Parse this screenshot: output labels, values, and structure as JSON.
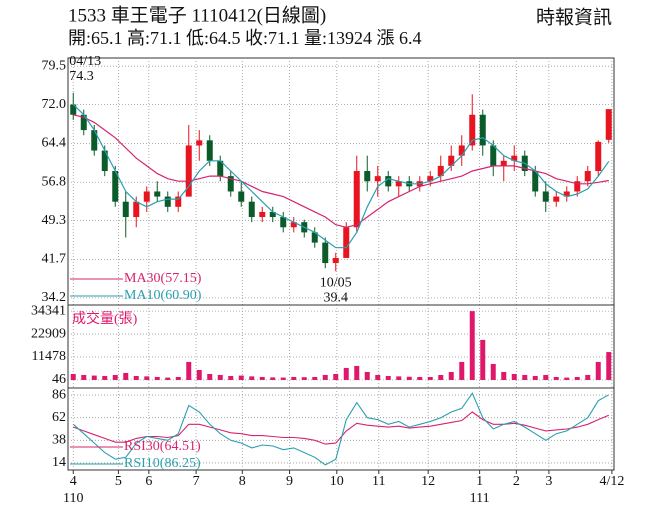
{
  "header": {
    "title": "1533  車王電子 1110412(日線圖)",
    "subtitle": "開:65.1 高:71.1 低:64.5 收:71.1 量:13924 漲 6.4",
    "source": "時報資訊"
  },
  "chart_data": [
    {
      "type": "candlestick",
      "open": [
        72,
        70,
        67,
        63,
        59,
        53,
        50,
        53,
        55,
        54,
        52,
        54,
        64,
        65,
        61,
        58,
        55,
        53,
        50,
        51,
        50,
        48,
        49,
        47,
        45,
        41,
        42,
        48,
        59,
        57,
        58,
        56,
        57,
        56,
        57,
        58,
        60,
        62,
        64,
        70,
        64,
        60,
        61,
        62,
        59,
        55,
        53,
        54,
        55,
        57,
        59,
        65.1
      ],
      "high": [
        74.3,
        71,
        68,
        64,
        60,
        55,
        54,
        56,
        57,
        55,
        55,
        68,
        67,
        66,
        62,
        59,
        57,
        54,
        52,
        52,
        51,
        50,
        49.5,
        48,
        46,
        43,
        49,
        62,
        62,
        60,
        59,
        58,
        58,
        58,
        59,
        62,
        64,
        66,
        74,
        71,
        65,
        62,
        64,
        63,
        60,
        57,
        55,
        56,
        58,
        60,
        65,
        71.1
      ],
      "low": [
        69,
        66,
        62,
        58,
        52,
        46,
        48,
        51,
        53,
        51,
        51,
        54,
        61,
        60,
        57,
        54,
        52,
        49,
        49,
        49,
        47,
        47,
        46,
        44,
        40,
        39.4,
        42,
        47,
        55,
        54,
        55,
        54,
        55,
        55,
        56,
        57,
        59,
        60,
        63,
        62,
        58,
        57,
        59,
        58,
        54,
        51,
        52,
        53,
        54,
        56,
        58,
        64.5
      ],
      "close": [
        70,
        67,
        63,
        59,
        53,
        50,
        53,
        55,
        54,
        52,
        54,
        64,
        65,
        61,
        58,
        55,
        53,
        50,
        51,
        50,
        48,
        49,
        47,
        45,
        41,
        42,
        48,
        59,
        57,
        58,
        56,
        57,
        56,
        57,
        58,
        60,
        62,
        64,
        70,
        64,
        60,
        61,
        62,
        59,
        55,
        53,
        54,
        55,
        57,
        59,
        64.7,
        71.1
      ],
      "up_color": "#e8141f",
      "down_color": "#0a5a2a",
      "series": [
        {
          "name": "MA30(57.15)",
          "color": "#d6246e",
          "values": [
            70,
            69.5,
            68.5,
            67,
            65.5,
            63.5,
            61.5,
            60,
            58.5,
            57.5,
            57,
            57,
            57.5,
            58,
            58,
            57.5,
            57,
            56,
            55,
            54.5,
            54,
            53,
            52,
            51,
            50,
            48.5,
            48,
            48.5,
            50,
            51.5,
            53,
            54,
            55,
            56,
            56.5,
            57,
            57.5,
            58,
            59,
            59.5,
            60,
            60,
            60,
            59.5,
            59,
            58.5,
            57.5,
            57,
            56.5,
            56.5,
            56.8,
            57.15
          ]
        },
        {
          "name": "MA10(60.90)",
          "color": "#2a9fb0",
          "values": [
            72,
            70,
            67,
            63,
            59,
            55,
            53,
            52,
            53,
            53.5,
            53.5,
            56,
            59,
            61,
            61,
            59,
            57,
            55,
            53,
            51,
            50,
            49,
            48,
            47,
            45.5,
            44,
            44,
            47,
            52,
            56,
            57.5,
            57,
            56.5,
            56.5,
            57,
            58,
            60,
            62,
            65,
            65.5,
            64,
            62,
            61,
            60.5,
            59,
            56.5,
            55,
            54,
            54.5,
            55.5,
            58,
            60.9
          ]
        }
      ],
      "annotations": [
        {
          "label": "04/13",
          "value": 74.3,
          "x": 0
        },
        {
          "label": "10/05",
          "value": 39.4,
          "x": 25
        }
      ],
      "xlim": [
        -0.5,
        51.5
      ],
      "ylim": [
        32.8,
        81.1
      ],
      "yticks": [
        79.5,
        {
          "value": 72,
          "label": "72.0"
        },
        64.4,
        56.8,
        49.3,
        41.7,
        34.2
      ],
      "grid": true
    },
    {
      "type": "bar",
      "title": "成交量(張)",
      "color": "#e0186c",
      "values": [
        3000,
        2500,
        2200,
        2000,
        2500,
        3500,
        2000,
        1800,
        1500,
        1200,
        1500,
        9000,
        5000,
        3000,
        2500,
        2000,
        2200,
        1800,
        1500,
        1300,
        1200,
        1500,
        1400,
        1500,
        2500,
        3000,
        6000,
        7000,
        4000,
        2500,
        2000,
        1800,
        1600,
        1500,
        1500,
        2500,
        4000,
        9000,
        34341,
        20000,
        8000,
        4000,
        3000,
        2500,
        2000,
        2500,
        1500,
        1200,
        1500,
        2500,
        9000,
        13924
      ],
      "xlim": [
        -0.5,
        51.5
      ],
      "ylim": [
        -4000,
        37400
      ],
      "yticks": [
        34341,
        22909,
        11478,
        46
      ],
      "grid": true
    },
    {
      "type": "line",
      "series": [
        {
          "name": "RSI30(64.51)",
          "color": "#d6246e",
          "values": [
            52,
            48,
            44,
            40,
            36,
            36,
            40,
            42,
            42,
            41,
            43,
            55,
            55,
            52,
            49,
            46,
            45,
            43,
            43,
            42,
            41,
            41,
            40,
            38,
            34,
            35,
            48,
            56,
            54,
            53,
            52,
            53,
            51,
            52,
            53,
            55,
            57,
            59,
            68,
            60,
            55,
            55,
            56,
            54,
            51,
            48,
            49,
            50,
            52,
            55,
            60,
            64.51
          ]
        },
        {
          "name": "RSI10(86.25)",
          "color": "#2a9fb0",
          "values": [
            55,
            45,
            35,
            25,
            18,
            20,
            35,
            42,
            40,
            38,
            45,
            75,
            68,
            55,
            45,
            38,
            35,
            30,
            33,
            32,
            28,
            30,
            25,
            20,
            12,
            18,
            60,
            78,
            62,
            60,
            55,
            58,
            52,
            55,
            58,
            62,
            68,
            72,
            88,
            62,
            50,
            55,
            58,
            52,
            45,
            38,
            45,
            48,
            55,
            62,
            80,
            86.25
          ]
        }
      ],
      "xlim": [
        -0.5,
        51.5
      ],
      "ylim": [
        6.5,
        93.5
      ],
      "yticks": [
        86,
        62,
        38,
        14
      ],
      "grid": true,
      "xticks": [
        {
          "value": 0,
          "label": "4"
        },
        {
          "value": 4.3,
          "label": "5"
        },
        {
          "value": 7.2,
          "label": "6"
        },
        {
          "value": 11.7,
          "label": "7"
        },
        {
          "value": 16.1,
          "label": "8"
        },
        {
          "value": 20.6,
          "label": "9"
        },
        {
          "value": 25.1,
          "label": "10"
        },
        {
          "value": 29.1,
          "label": "11"
        },
        {
          "value": 33.8,
          "label": "12"
        },
        {
          "value": 38.7,
          "label": "1"
        },
        {
          "value": 42.2,
          "label": "2"
        },
        {
          "value": 45.3,
          "label": "3"
        },
        {
          "value": 51.3,
          "label": "4/12"
        }
      ],
      "xsublabels": [
        {
          "value": 0,
          "label": "110"
        },
        {
          "value": 38.7,
          "label": "111"
        }
      ]
    }
  ]
}
